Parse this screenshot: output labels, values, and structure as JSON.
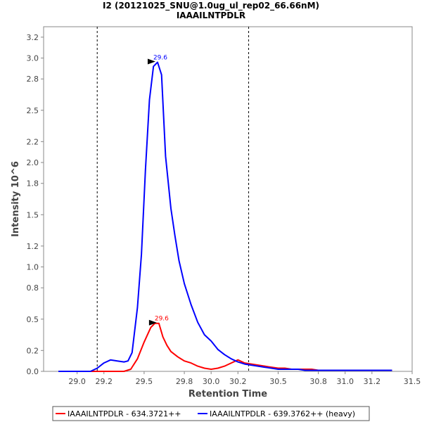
{
  "chart_data": {
    "type": "line",
    "title": "I2 (20121025_SNU@1.0ug_ul_rep02_66.66nM)",
    "subtitle": "IAAAILNTPDLR",
    "xlabel": "Retention Time",
    "ylabel": "Intensity 10^6",
    "xlim": [
      28.75,
      31.5
    ],
    "ylim": [
      0,
      3.3
    ],
    "xticks": [
      29.0,
      29.2,
      29.5,
      29.8,
      30.0,
      30.2,
      30.5,
      30.8,
      31.0,
      31.2,
      31.5
    ],
    "xtick_labels": [
      "29.0",
      "29.2",
      "29.5",
      "29.8",
      "30.0",
      "30.2",
      "30.5",
      "30.8",
      "31.0",
      "31.2",
      "31.5"
    ],
    "yticks": [
      0.0,
      0.2,
      0.5,
      0.8,
      1.0,
      1.2,
      1.5,
      1.8,
      2.0,
      2.2,
      2.5,
      2.8,
      3.0,
      3.2
    ],
    "ytick_labels": [
      "0.0",
      "0.2",
      "0.5",
      "0.8",
      "1.0",
      "1.2",
      "1.5",
      "1.8",
      "2.0",
      "2.2",
      "2.5",
      "2.8",
      "3.0",
      "3.2"
    ],
    "grid": false,
    "legend_position": "bottom",
    "boundaries": [
      29.15,
      30.28
    ],
    "series": [
      {
        "name": "IAAAILNTPDLR - 634.3721++",
        "color": "#ff0000",
        "peak_label": "29.6",
        "peak": {
          "x": 29.61,
          "y": 0.46
        },
        "x": [
          28.86,
          28.9,
          28.95,
          29.0,
          29.05,
          29.1,
          29.15,
          29.2,
          29.25,
          29.3,
          29.35,
          29.4,
          29.45,
          29.5,
          29.55,
          29.58,
          29.61,
          29.64,
          29.67,
          29.7,
          29.75,
          29.8,
          29.85,
          29.9,
          29.95,
          30.0,
          30.05,
          30.1,
          30.15,
          30.2,
          30.25,
          30.3,
          30.35,
          30.4,
          30.45,
          30.5,
          30.55,
          30.6,
          30.65,
          30.7,
          30.75,
          30.8,
          30.85,
          30.9,
          30.95,
          31.0,
          31.05,
          31.1,
          31.15,
          31.2,
          31.25,
          31.3,
          31.35
        ],
        "y": [
          0.0,
          0.0,
          0.0,
          0.0,
          0.0,
          0.0,
          0.0,
          0.0,
          0.0,
          0.0,
          0.0,
          0.02,
          0.12,
          0.28,
          0.42,
          0.46,
          0.46,
          0.33,
          0.25,
          0.19,
          0.14,
          0.1,
          0.08,
          0.05,
          0.03,
          0.02,
          0.03,
          0.05,
          0.08,
          0.11,
          0.08,
          0.07,
          0.06,
          0.05,
          0.04,
          0.03,
          0.03,
          0.02,
          0.02,
          0.02,
          0.02,
          0.01,
          0.01,
          0.01,
          0.01,
          0.01,
          0.01,
          0.01,
          0.01,
          0.01,
          0.01,
          0.01,
          0.01
        ]
      },
      {
        "name": "IAAAILNTPDLR - 639.3762++ (heavy)",
        "color": "#0000ff",
        "peak_label": "29.6",
        "peak": {
          "x": 29.6,
          "y": 2.96
        },
        "x": [
          28.86,
          28.9,
          28.95,
          29.0,
          29.05,
          29.1,
          29.15,
          29.2,
          29.25,
          29.3,
          29.35,
          29.38,
          29.41,
          29.45,
          29.48,
          29.51,
          29.54,
          29.57,
          29.6,
          29.63,
          29.66,
          29.7,
          29.73,
          29.76,
          29.8,
          29.85,
          29.9,
          29.95,
          30.0,
          30.05,
          30.1,
          30.15,
          30.2,
          30.25,
          30.3,
          30.35,
          30.4,
          30.45,
          30.5,
          30.55,
          30.6,
          30.65,
          30.7,
          30.75,
          30.8,
          30.85,
          30.9,
          30.95,
          31.0,
          31.05,
          31.1,
          31.15,
          31.2,
          31.25,
          31.3,
          31.35
        ],
        "y": [
          0.0,
          0.0,
          0.0,
          0.0,
          0.0,
          0.0,
          0.03,
          0.08,
          0.11,
          0.1,
          0.09,
          0.1,
          0.18,
          0.61,
          1.12,
          1.93,
          2.6,
          2.92,
          2.96,
          2.84,
          2.06,
          1.56,
          1.3,
          1.06,
          0.84,
          0.64,
          0.47,
          0.35,
          0.29,
          0.21,
          0.16,
          0.12,
          0.09,
          0.07,
          0.06,
          0.05,
          0.04,
          0.03,
          0.02,
          0.02,
          0.02,
          0.02,
          0.01,
          0.01,
          0.01,
          0.01,
          0.01,
          0.01,
          0.01,
          0.01,
          0.01,
          0.01,
          0.01,
          0.01,
          0.01,
          0.01
        ]
      }
    ]
  }
}
